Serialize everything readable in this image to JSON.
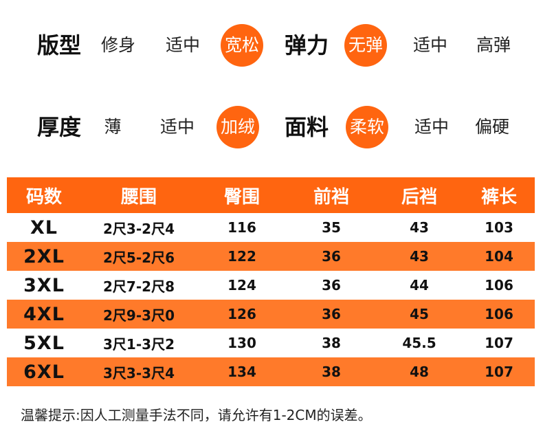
{
  "attributes": {
    "row1": {
      "fit": {
        "label": "版型",
        "options": [
          "修身",
          "适中",
          "宽松"
        ],
        "selected": 2
      },
      "stretch": {
        "label": "弹力",
        "options": [
          "无弹",
          "适中",
          "高弹"
        ],
        "selected": 0
      }
    },
    "row2": {
      "thickness": {
        "label": "厚度",
        "options": [
          "薄",
          "适中",
          "加绒"
        ],
        "selected": 2
      },
      "fabric": {
        "label": "面料",
        "options": [
          "柔软",
          "适中",
          "偏硬"
        ],
        "selected": 0
      }
    }
  },
  "size_table": {
    "headers": [
      "码数",
      "腰围",
      "臀围",
      "前裆",
      "后裆",
      "裤长"
    ],
    "rows": [
      [
        "XL",
        "2尺3-2尺4",
        "116",
        "35",
        "43",
        "103"
      ],
      [
        "2XL",
        "2尺5-2尺6",
        "122",
        "36",
        "43",
        "104"
      ],
      [
        "3XL",
        "2尺7-2尺8",
        "124",
        "36",
        "44",
        "106"
      ],
      [
        "4XL",
        "2尺9-3尺0",
        "126",
        "36",
        "45",
        "106"
      ],
      [
        "5XL",
        "3尺1-3尺2",
        "130",
        "38",
        "45.5",
        "107"
      ],
      [
        "6XL",
        "3尺3-3尺4",
        "134",
        "38",
        "48",
        "107"
      ]
    ]
  },
  "colors": {
    "accent": "#ff6510",
    "row_shade": "#ff7a2a",
    "text": "#111111"
  },
  "note": "温馨提示:因人工测量手法不同，请允许有1-2CM的误差。"
}
